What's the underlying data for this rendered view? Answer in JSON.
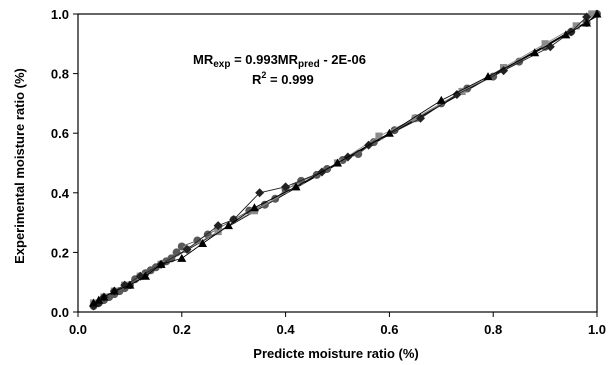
{
  "chart_data": {
    "type": "scatter",
    "title": "",
    "xlabel": "Predicte moisture ratio (%)",
    "ylabel": "Experimental moisture ratio (%)",
    "xlim": [
      0.0,
      1.0
    ],
    "ylim": [
      0.0,
      1.0
    ],
    "x_ticks": [
      "0.0",
      "0.2",
      "0.4",
      "0.6",
      "0.8",
      "1.0"
    ],
    "y_ticks": [
      "0.0",
      "0.2",
      "0.4",
      "0.6",
      "0.8",
      "1.0"
    ],
    "grid": false,
    "legend": "none",
    "annotation": {
      "equation_lhs": "MR",
      "equation_lhs_sub": "exp",
      "equation_mid": " = 0.993MR",
      "equation_mid_sub": "pred",
      "equation_rhs": " - 2E-06",
      "r2_label": "R",
      "r2_sup": "2",
      "r2_value": " = 0.999"
    },
    "fit_line": {
      "slope": 0.993,
      "intercept": -2e-06
    },
    "series": [
      {
        "marker": "circle",
        "color": "#595959",
        "points": [
          [
            0.03,
            0.02
          ],
          [
            0.04,
            0.03
          ],
          [
            0.05,
            0.04
          ],
          [
            0.06,
            0.05
          ],
          [
            0.07,
            0.06
          ],
          [
            0.08,
            0.07
          ],
          [
            0.09,
            0.08
          ],
          [
            0.1,
            0.09
          ],
          [
            0.11,
            0.11
          ],
          [
            0.12,
            0.12
          ],
          [
            0.13,
            0.13
          ],
          [
            0.14,
            0.14
          ],
          [
            0.15,
            0.15
          ],
          [
            0.16,
            0.16
          ],
          [
            0.17,
            0.17
          ],
          [
            0.18,
            0.18
          ],
          [
            0.19,
            0.2
          ],
          [
            0.2,
            0.22
          ],
          [
            0.23,
            0.24
          ],
          [
            0.25,
            0.26
          ],
          [
            0.27,
            0.28
          ],
          [
            0.3,
            0.31
          ],
          [
            0.33,
            0.34
          ],
          [
            0.36,
            0.36
          ],
          [
            0.38,
            0.38
          ],
          [
            0.4,
            0.41
          ],
          [
            0.43,
            0.44
          ],
          [
            0.46,
            0.46
          ],
          [
            0.48,
            0.48
          ],
          [
            0.51,
            0.51
          ],
          [
            0.54,
            0.53
          ],
          [
            0.57,
            0.57
          ],
          [
            0.61,
            0.61
          ],
          [
            0.65,
            0.65
          ],
          [
            0.7,
            0.7
          ],
          [
            0.75,
            0.75
          ],
          [
            0.8,
            0.79
          ],
          [
            0.85,
            0.84
          ],
          [
            0.9,
            0.89
          ],
          [
            0.95,
            0.94
          ],
          [
            0.98,
            0.97
          ],
          [
            1.0,
            1.0
          ]
        ]
      },
      {
        "marker": "square",
        "color": "#8c8c8c",
        "points": [
          [
            0.03,
            0.03
          ],
          [
            0.05,
            0.05
          ],
          [
            0.07,
            0.07
          ],
          [
            0.09,
            0.09
          ],
          [
            0.12,
            0.12
          ],
          [
            0.16,
            0.16
          ],
          [
            0.21,
            0.21
          ],
          [
            0.27,
            0.27
          ],
          [
            0.34,
            0.34
          ],
          [
            0.42,
            0.42
          ],
          [
            0.5,
            0.5
          ],
          [
            0.58,
            0.59
          ],
          [
            0.65,
            0.65
          ],
          [
            0.74,
            0.74
          ],
          [
            0.82,
            0.82
          ],
          [
            0.9,
            0.9
          ],
          [
            0.96,
            0.96
          ],
          [
            0.99,
            1.0
          ]
        ]
      },
      {
        "marker": "diamond",
        "color": "#222222",
        "points": [
          [
            0.03,
            0.02
          ],
          [
            0.04,
            0.03
          ],
          [
            0.05,
            0.05
          ],
          [
            0.07,
            0.07
          ],
          [
            0.09,
            0.09
          ],
          [
            0.12,
            0.12
          ],
          [
            0.16,
            0.16
          ],
          [
            0.21,
            0.21
          ],
          [
            0.27,
            0.29
          ],
          [
            0.3,
            0.31
          ],
          [
            0.35,
            0.4
          ],
          [
            0.4,
            0.42
          ],
          [
            0.47,
            0.47
          ],
          [
            0.52,
            0.52
          ],
          [
            0.56,
            0.56
          ],
          [
            0.66,
            0.65
          ],
          [
            0.73,
            0.73
          ],
          [
            0.82,
            0.81
          ],
          [
            0.91,
            0.89
          ],
          [
            0.95,
            0.94
          ],
          [
            0.98,
            0.99
          ]
        ]
      },
      {
        "marker": "triangle",
        "color": "#000000",
        "points": [
          [
            0.03,
            0.03
          ],
          [
            0.04,
            0.04
          ],
          [
            0.05,
            0.05
          ],
          [
            0.07,
            0.07
          ],
          [
            0.1,
            0.09
          ],
          [
            0.13,
            0.12
          ],
          [
            0.16,
            0.16
          ],
          [
            0.2,
            0.18
          ],
          [
            0.24,
            0.23
          ],
          [
            0.29,
            0.29
          ],
          [
            0.34,
            0.35
          ],
          [
            0.42,
            0.42
          ],
          [
            0.5,
            0.5
          ],
          [
            0.6,
            0.6
          ],
          [
            0.7,
            0.71
          ],
          [
            0.79,
            0.79
          ],
          [
            0.88,
            0.87
          ],
          [
            0.94,
            0.93
          ],
          [
            0.98,
            0.97
          ],
          [
            1.0,
            1.0
          ]
        ]
      }
    ]
  }
}
